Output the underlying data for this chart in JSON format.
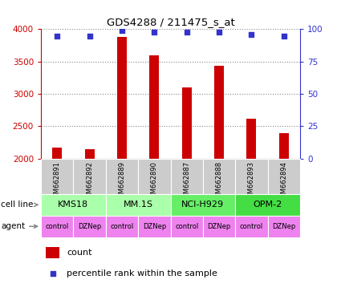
{
  "title": "GDS4288 / 211475_s_at",
  "samples": [
    "GSM662891",
    "GSM662892",
    "GSM662889",
    "GSM662890",
    "GSM662887",
    "GSM662888",
    "GSM662893",
    "GSM662894"
  ],
  "counts": [
    2175,
    2145,
    3880,
    3600,
    3100,
    3440,
    2620,
    2400
  ],
  "percentile_ranks": [
    95,
    95,
    99,
    98,
    98,
    98,
    96,
    95
  ],
  "bar_color": "#cc0000",
  "dot_color": "#3333cc",
  "ylim_left": [
    2000,
    4000
  ],
  "ylim_right": [
    0,
    100
  ],
  "yticks_left": [
    2000,
    2500,
    3000,
    3500,
    4000
  ],
  "yticks_right": [
    0,
    25,
    50,
    75,
    100
  ],
  "cell_lines": [
    "KMS18",
    "MM.1S",
    "NCI-H929",
    "OPM-2"
  ],
  "cell_line_spans": [
    [
      0,
      2
    ],
    [
      2,
      4
    ],
    [
      4,
      6
    ],
    [
      6,
      8
    ]
  ],
  "cell_line_colors": [
    "#aaffaa",
    "#aaffaa",
    "#66ee66",
    "#44dd44"
  ],
  "agents": [
    "control",
    "DZNep",
    "control",
    "DZNep",
    "control",
    "DZNep",
    "control",
    "DZNep"
  ],
  "agent_color": "#ee82ee",
  "left_axis_color": "#cc0000",
  "right_axis_color": "#3333cc",
  "grid_color": "#888888",
  "sample_box_color": "#cccccc",
  "bar_width": 0.3
}
